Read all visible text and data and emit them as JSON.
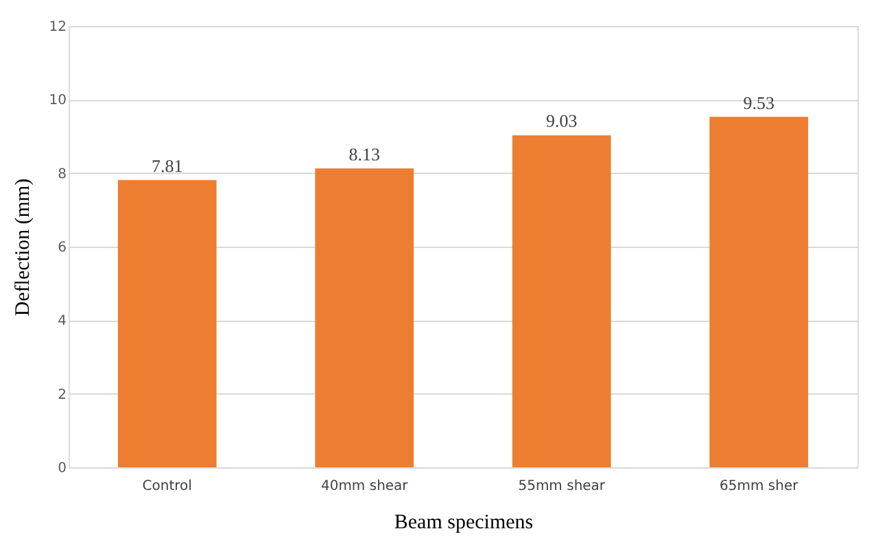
{
  "chart_data": {
    "type": "bar",
    "xlabel": "Beam specimens",
    "ylabel": "Deflection (mm)",
    "categories": [
      "Control",
      "40mm shear",
      "55mm shear",
      "65mm sher"
    ],
    "values": [
      7.81,
      8.13,
      9.03,
      9.53
    ],
    "color": "#ed7d31",
    "ylim": [
      0,
      12
    ],
    "yticks": [
      0,
      2,
      4,
      6,
      8,
      10,
      12
    ],
    "grid": "y",
    "data_labels": true
  }
}
